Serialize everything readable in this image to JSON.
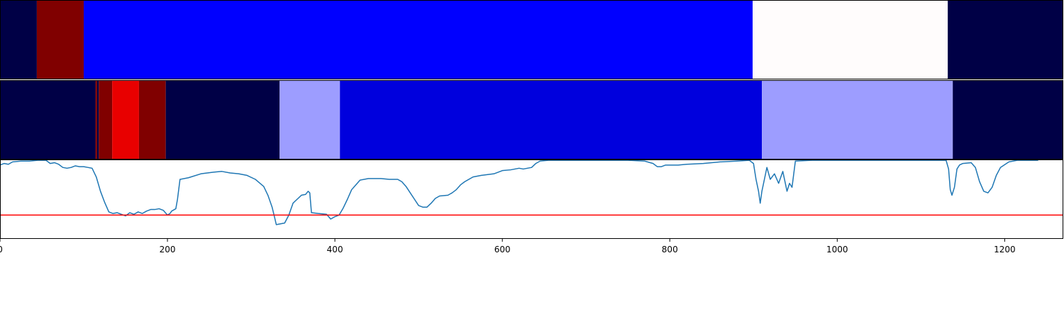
{
  "chart_data": [
    {
      "type": "heatmap",
      "title": "",
      "xlim": [
        0,
        1270
      ],
      "segments": [
        {
          "x0": 0,
          "x1": 44,
          "color": "#000046"
        },
        {
          "x0": 44,
          "x1": 100,
          "color": "#800000"
        },
        {
          "x0": 100,
          "x1": 899,
          "color": "#0000ff"
        },
        {
          "x0": 899,
          "x1": 1132,
          "color": "#fffcfc"
        },
        {
          "x0": 1132,
          "x1": 1270,
          "color": "#000046"
        }
      ]
    },
    {
      "type": "heatmap",
      "title": "",
      "xlim": [
        0,
        1270
      ],
      "segments": [
        {
          "x0": 0,
          "x1": 114,
          "color": "#000046"
        },
        {
          "x0": 114,
          "x1": 116,
          "color": "#800000"
        },
        {
          "x0": 116,
          "x1": 118,
          "color": "#000046"
        },
        {
          "x0": 118,
          "x1": 134,
          "color": "#800000"
        },
        {
          "x0": 134,
          "x1": 166,
          "color": "#e80000"
        },
        {
          "x0": 166,
          "x1": 198,
          "color": "#800000"
        },
        {
          "x0": 198,
          "x1": 334,
          "color": "#000046"
        },
        {
          "x0": 334,
          "x1": 406,
          "color": "#9d9dff"
        },
        {
          "x0": 406,
          "x1": 910,
          "color": "#0000dd"
        },
        {
          "x0": 910,
          "x1": 1138,
          "color": "#9d9dff"
        },
        {
          "x0": 1138,
          "x1": 1270,
          "color": "#000046"
        }
      ]
    },
    {
      "type": "line",
      "title": "",
      "xlabel": "",
      "ylabel": "",
      "xlim": [
        0,
        1270
      ],
      "ylim": [
        0,
        1
      ],
      "x_ticks": [
        0,
        200,
        400,
        600,
        800,
        1000,
        1200
      ],
      "threshold": 0.3,
      "threshold_color": "#ff0000",
      "series": [
        {
          "color": "#1f77b4",
          "points": [
            [
              0,
              0.93
            ],
            [
              5,
              0.95
            ],
            [
              10,
              0.94
            ],
            [
              15,
              0.97
            ],
            [
              25,
              0.98
            ],
            [
              35,
              0.98
            ],
            [
              45,
              0.99
            ],
            [
              55,
              0.99
            ],
            [
              60,
              0.95
            ],
            [
              65,
              0.96
            ],
            [
              70,
              0.94
            ],
            [
              75,
              0.9
            ],
            [
              80,
              0.89
            ],
            [
              85,
              0.9
            ],
            [
              90,
              0.92
            ],
            [
              95,
              0.91
            ],
            [
              100,
              0.91
            ],
            [
              105,
              0.9
            ],
            [
              110,
              0.89
            ],
            [
              115,
              0.78
            ],
            [
              120,
              0.6
            ],
            [
              125,
              0.46
            ],
            [
              130,
              0.34
            ],
            [
              135,
              0.32
            ],
            [
              140,
              0.33
            ],
            [
              145,
              0.31
            ],
            [
              150,
              0.29
            ],
            [
              155,
              0.33
            ],
            [
              160,
              0.31
            ],
            [
              165,
              0.34
            ],
            [
              170,
              0.32
            ],
            [
              175,
              0.35
            ],
            [
              180,
              0.37
            ],
            [
              185,
              0.37
            ],
            [
              190,
              0.38
            ],
            [
              195,
              0.36
            ],
            [
              200,
              0.3
            ],
            [
              203,
              0.32
            ],
            [
              205,
              0.35
            ],
            [
              210,
              0.38
            ],
            [
              212,
              0.5
            ],
            [
              215,
              0.75
            ],
            [
              225,
              0.77
            ],
            [
              240,
              0.82
            ],
            [
              255,
              0.84
            ],
            [
              265,
              0.85
            ],
            [
              275,
              0.83
            ],
            [
              285,
              0.82
            ],
            [
              295,
              0.8
            ],
            [
              305,
              0.75
            ],
            [
              315,
              0.66
            ],
            [
              320,
              0.55
            ],
            [
              325,
              0.4
            ],
            [
              328,
              0.27
            ],
            [
              330,
              0.18
            ],
            [
              335,
              0.19
            ],
            [
              340,
              0.2
            ],
            [
              345,
              0.3
            ],
            [
              350,
              0.45
            ],
            [
              355,
              0.5
            ],
            [
              360,
              0.55
            ],
            [
              365,
              0.56
            ],
            [
              368,
              0.6
            ],
            [
              370,
              0.58
            ],
            [
              372,
              0.33
            ],
            [
              380,
              0.32
            ],
            [
              390,
              0.31
            ],
            [
              395,
              0.25
            ],
            [
              400,
              0.28
            ],
            [
              405,
              0.3
            ],
            [
              410,
              0.39
            ],
            [
              415,
              0.5
            ],
            [
              420,
              0.62
            ],
            [
              425,
              0.68
            ],
            [
              430,
              0.74
            ],
            [
              440,
              0.76
            ],
            [
              455,
              0.76
            ],
            [
              465,
              0.75
            ],
            [
              475,
              0.75
            ],
            [
              480,
              0.72
            ],
            [
              485,
              0.66
            ],
            [
              490,
              0.58
            ],
            [
              495,
              0.5
            ],
            [
              500,
              0.42
            ],
            [
              505,
              0.4
            ],
            [
              510,
              0.4
            ],
            [
              515,
              0.45
            ],
            [
              520,
              0.51
            ],
            [
              525,
              0.54
            ],
            [
              535,
              0.55
            ],
            [
              540,
              0.58
            ],
            [
              545,
              0.62
            ],
            [
              550,
              0.68
            ],
            [
              555,
              0.72
            ],
            [
              565,
              0.78
            ],
            [
              575,
              0.8
            ],
            [
              590,
              0.82
            ],
            [
              600,
              0.86
            ],
            [
              610,
              0.87
            ],
            [
              620,
              0.89
            ],
            [
              625,
              0.88
            ],
            [
              630,
              0.89
            ],
            [
              635,
              0.9
            ],
            [
              640,
              0.95
            ],
            [
              645,
              0.98
            ],
            [
              655,
              0.99
            ],
            [
              700,
              0.99
            ],
            [
              750,
              0.99
            ],
            [
              770,
              0.98
            ],
            [
              780,
              0.95
            ],
            [
              785,
              0.91
            ],
            [
              790,
              0.91
            ],
            [
              795,
              0.93
            ],
            [
              810,
              0.93
            ],
            [
              820,
              0.94
            ],
            [
              840,
              0.95
            ],
            [
              860,
              0.97
            ],
            [
              880,
              0.98
            ],
            [
              895,
              0.99
            ],
            [
              900,
              0.95
            ],
            [
              903,
              0.75
            ],
            [
              906,
              0.6
            ],
            [
              908,
              0.45
            ],
            [
              910,
              0.6
            ],
            [
              913,
              0.75
            ],
            [
              916,
              0.9
            ],
            [
              920,
              0.75
            ],
            [
              925,
              0.82
            ],
            [
              930,
              0.7
            ],
            [
              935,
              0.85
            ],
            [
              940,
              0.6
            ],
            [
              943,
              0.7
            ],
            [
              946,
              0.65
            ],
            [
              950,
              0.98
            ],
            [
              970,
              0.99
            ],
            [
              1130,
              0.99
            ],
            [
              1133,
              0.88
            ],
            [
              1135,
              0.62
            ],
            [
              1137,
              0.55
            ],
            [
              1140,
              0.65
            ],
            [
              1143,
              0.88
            ],
            [
              1146,
              0.93
            ],
            [
              1150,
              0.95
            ],
            [
              1160,
              0.96
            ],
            [
              1165,
              0.9
            ],
            [
              1170,
              0.72
            ],
            [
              1175,
              0.6
            ],
            [
              1180,
              0.58
            ],
            [
              1185,
              0.65
            ],
            [
              1190,
              0.8
            ],
            [
              1195,
              0.9
            ],
            [
              1205,
              0.97
            ],
            [
              1215,
              0.99
            ],
            [
              1240,
              0.99
            ]
          ]
        }
      ]
    }
  ]
}
